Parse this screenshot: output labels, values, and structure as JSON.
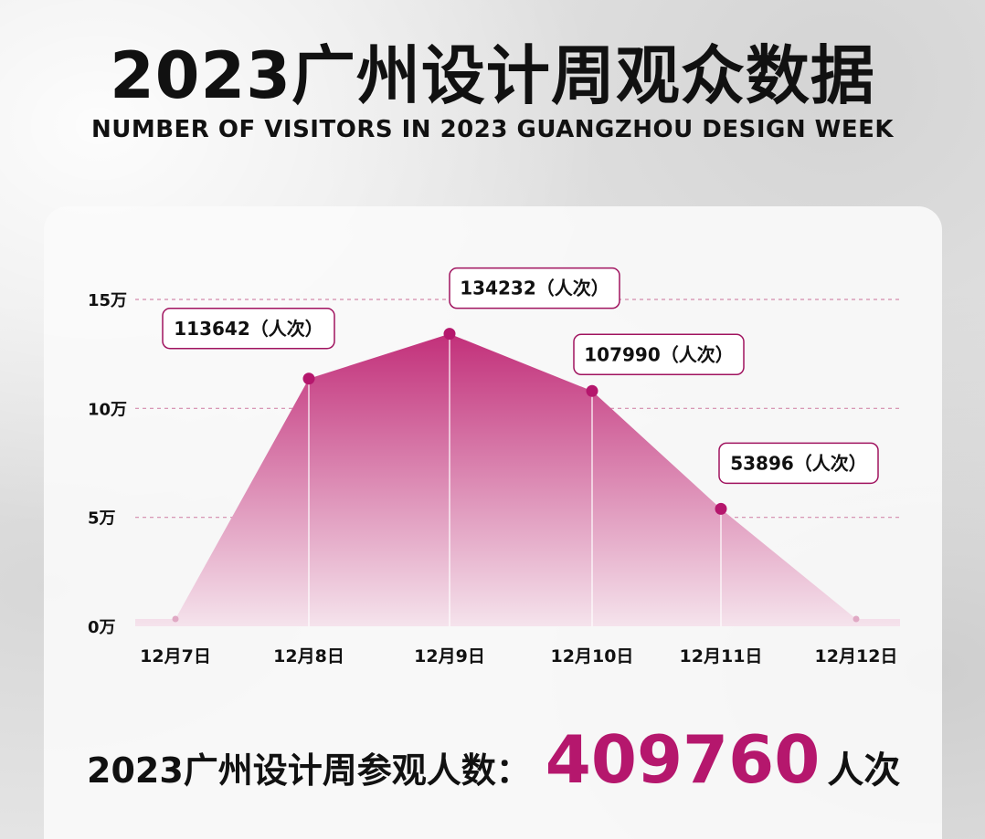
{
  "header": {
    "title": "2023广州设计周观众数据",
    "subtitle": "NUMBER OF VISITORS IN 2023 GUANGZHOU DESIGN WEEK"
  },
  "colors": {
    "accent": "#b5176d",
    "area_top": "#c2307a",
    "area_bottom": "#f5e3ec",
    "gridline": "#d48aac",
    "label_border": "#a0135f"
  },
  "chart_data": {
    "type": "area",
    "title": "",
    "xlabel": "",
    "ylabel": "",
    "categories": [
      "12月7日",
      "12月8日",
      "12月9日",
      "12月10日",
      "12月11日",
      "12月12日"
    ],
    "values": [
      0,
      113642,
      134232,
      107990,
      53896,
      0
    ],
    "point_labels": [
      "",
      "113642（人次）",
      "134232（人次）",
      "107990（人次）",
      "53896（人次）",
      ""
    ],
    "y_ticks": [
      0,
      50000,
      100000,
      150000
    ],
    "y_tick_labels": [
      "0万",
      "5万",
      "10万",
      "15万"
    ],
    "ylim": [
      0,
      150000
    ],
    "grid": true,
    "legend": "none"
  },
  "summary": {
    "label": "2023广州设计周参观人数：",
    "total": "409760",
    "unit": "人次"
  }
}
